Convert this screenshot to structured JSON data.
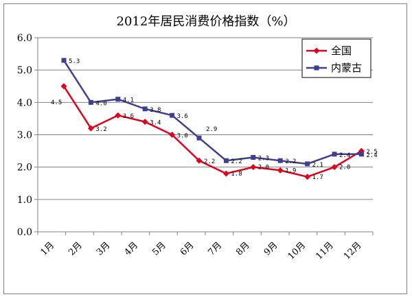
{
  "chart_data": {
    "type": "line",
    "title": "2012年居民消费价格指数（%）",
    "categories": [
      "1月",
      "2月",
      "3月",
      "4月",
      "5月",
      "6月",
      "7月",
      "8月",
      "9月",
      "10月",
      "11月",
      "12月"
    ],
    "y_ticks": [
      "0.0",
      "1.0",
      "2.0",
      "3.0",
      "4.0",
      "5.0",
      "6.0"
    ],
    "ylim": [
      0,
      6
    ],
    "grid": true,
    "legend_position": "top-right",
    "series": [
      {
        "name": "全国",
        "color": "#E0001B",
        "marker": "diamond",
        "values": [
          4.5,
          3.2,
          3.6,
          3.4,
          3.0,
          2.2,
          1.8,
          2.0,
          1.9,
          1.7,
          2.0,
          2.5
        ],
        "labels": [
          "4.5",
          "3.2",
          "3.6",
          "3.4",
          "3.0",
          "2.2",
          "1.8",
          "2.0",
          "1.9",
          "1.7",
          "2.0",
          "2.5"
        ]
      },
      {
        "name": "内蒙古",
        "color": "#3F3F8F",
        "marker": "square",
        "values": [
          5.3,
          4.0,
          4.1,
          3.8,
          3.6,
          2.9,
          2.2,
          2.3,
          2.2,
          2.1,
          2.4,
          2.4
        ],
        "labels": [
          "5.3",
          "4.0",
          "4.1",
          "3.8",
          "3.6",
          "2.9",
          "2.2",
          "2.3",
          "2.2",
          "2.1",
          "2.4",
          "2.4"
        ]
      }
    ]
  }
}
